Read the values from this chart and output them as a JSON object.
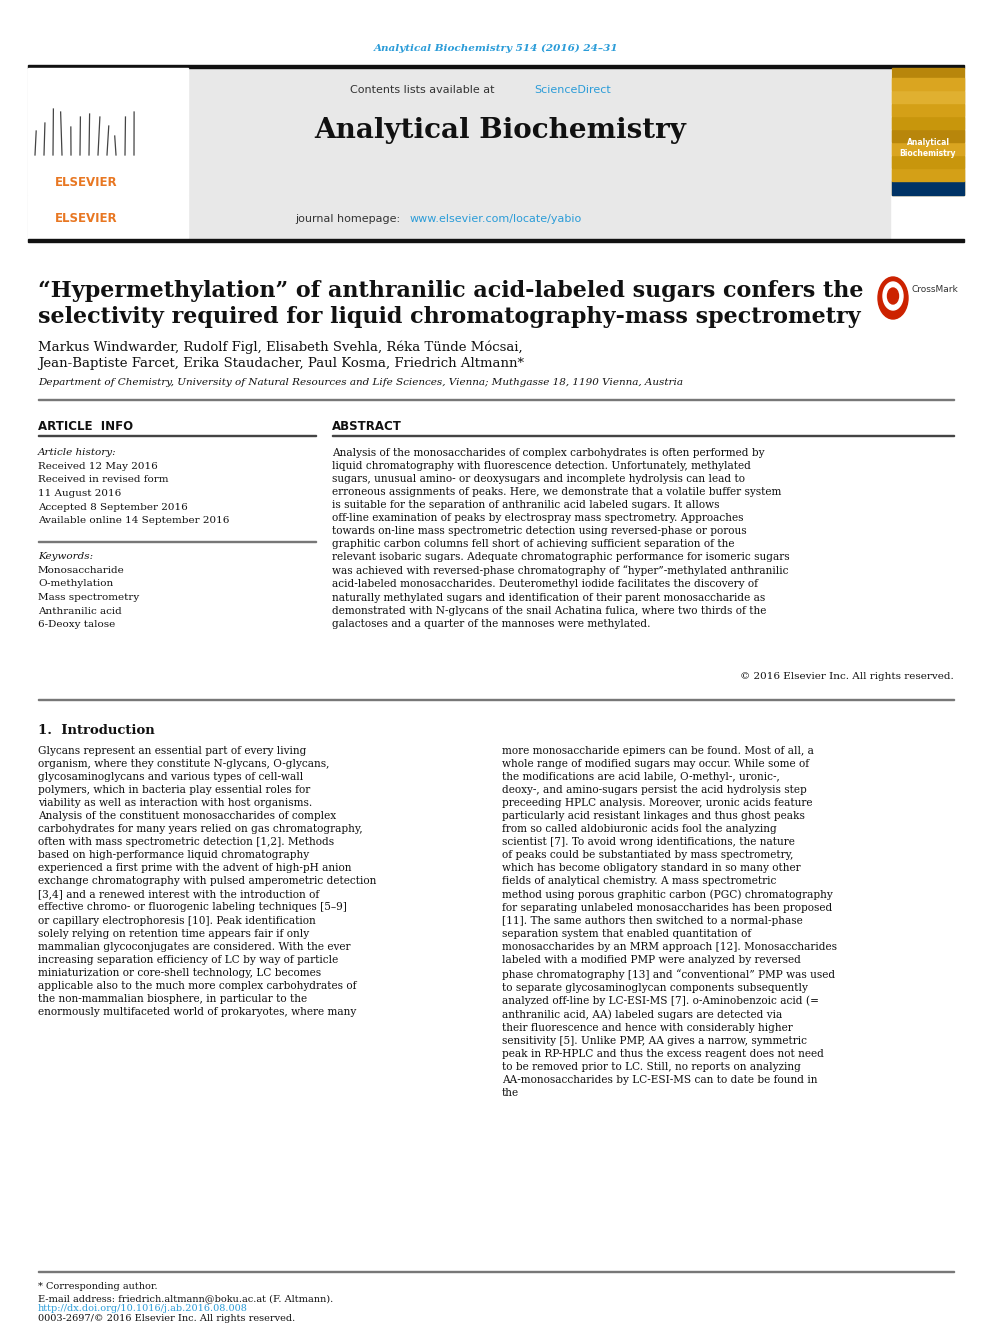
{
  "journal_ref": "Analytical Biochemistry 514 (2016) 24–31",
  "journal_name": "Analytical Biochemistry",
  "contents_text": "Contents lists available at",
  "science_direct": "ScienceDirect",
  "journal_homepage_text": "journal homepage:",
  "journal_url": "www.elsevier.com/locate/yabio",
  "title": "“Hypermethylation” of anthranilic acid-labeled sugars confers the\nselectivity required for liquid chromatography-mass spectrometry",
  "authors": "Markus Windwarder, Rudolf Figl, Elisabeth Svehla, Réka Tünde Mócsai,\nJean-Baptiste Farcet, Erika Staudacher, Paul Kosma, Friedrich Altmann*",
  "affiliation": "Department of Chemistry, University of Natural Resources and Life Sciences, Vienna; Muthgasse 18, 1190 Vienna, Austria",
  "article_info_title": "ARTICLE  INFO",
  "article_history_title": "Article history:",
  "received": "Received 12 May 2016",
  "revised": "Received in revised form",
  "revised2": "11 August 2016",
  "accepted": "Accepted 8 September 2016",
  "available": "Available online 14 September 2016",
  "keywords_title": "Keywords:",
  "keywords": [
    "Monosaccharide",
    "O-methylation",
    "Mass spectrometry",
    "Anthranilic acid",
    "6-Deoxy talose"
  ],
  "abstract_title": "ABSTRACT",
  "abstract_text": "Analysis of the monosaccharides of complex carbohydrates is often performed by liquid chromatography with fluorescence detection. Unfortunately, methylated sugars, unusual amino- or deoxysugars and incomplete hydrolysis can lead to erroneous assignments of peaks. Here, we demonstrate that a volatile buffer system is suitable for the separation of anthranilic acid labeled sugars. It allows off-line examination of peaks by electrospray mass spectrometry. Approaches towards on-line mass spectrometric detection using reversed-phase or porous graphitic carbon columns fell short of achieving sufficient separation of the relevant isobaric sugars. Adequate chromatographic performance for isomeric sugars was achieved with reversed-phase chromatography of “hyper”-methylated anthranilic acid-labeled monosaccharides. Deuteromethyl iodide facilitates the discovery of naturally methylated sugars and identification of their parent monosaccharide as demonstrated with N-glycans of the snail Achatina fulica, where two thirds of the galactoses and a quarter of the mannoses were methylated.",
  "copyright": "© 2016 Elsevier Inc. All rights reserved.",
  "section1_title": "1.  Introduction",
  "intro_col1": "Glycans represent an essential part of every living organism, where they constitute N-glycans, O-glycans, glycosaminoglycans and various types of cell-wall polymers, which in bacteria play essential roles for viability as well as interaction with host organisms. Analysis of the constituent monosaccharides of complex carbohydrates for many years relied on gas chromatography, often with mass spectrometric detection [1,2]. Methods based on high-performance liquid chromatography experienced a first prime with the advent of high-pH anion exchange chromatography with pulsed amperometric detection [3,4] and a renewed interest with the introduction of effective chromo- or fluorogenic labeling techniques [5–9] or capillary electrophoresis [10]. Peak identification solely relying on retention time appears fair if only mammalian glycoconjugates are considered. With the ever increasing separation efficiency of LC by way of particle miniaturization or core-shell technology, LC becomes applicable also to the much more complex carbohydrates of the non-mammalian biosphere, in particular to the enormously multifaceted world of prokaryotes, where many",
  "intro_col2": "more monosaccharide epimers can be found. Most of all, a whole range of modified sugars may occur. While some of the modifications are acid labile, O-methyl-, uronic-, deoxy-, and amino-sugars persist the acid hydrolysis step preceeding HPLC analysis. Moreover, uronic acids feature particularly acid resistant linkages and thus ghost peaks from so called aldobiuronic acids fool the analyzing scientist [7]. To avoid wrong identifications, the nature of peaks could be substantiated by mass spectrometry, which has become obligatory standard in so many other fields of analytical chemistry.\n    A mass spectrometric method using porous graphitic carbon (PGC) chromatography for separating unlabeled monosaccharides has been proposed [11]. The same authors then switched to a normal-phase separation system that enabled quantitation of monosaccharides by an MRM approach [12]. Monosaccharides labeled with a modified PMP were analyzed by reversed phase chromatography [13] and “conventional” PMP was used to separate glycosaminoglycan components subsequently analyzed off-line by LC-ESI-MS [7]. o-Aminobenzoic acid (= anthranilic acid, AA) labeled sugars are detected via their fluorescence and hence with considerably higher sensitivity [5]. Unlike PMP, AA gives a narrow, symmetric peak in RP-HPLC and thus the excess reagent does not need to be removed prior to LC. Still, no reports on analyzing AA-monosaccharides by LC-ESI-MS can to date be found in the",
  "footnote_corresponding": "* Corresponding author.",
  "footnote_email": "E-mail address: friedrich.altmann@boku.ac.at (F. Altmann).",
  "doi": "http://dx.doi.org/10.1016/j.ab.2016.08.008",
  "issn": "0003-2697/© 2016 Elsevier Inc. All rights reserved.",
  "bg_color": "#ffffff",
  "teal_color": "#2b9cd8",
  "elsevier_orange": "#e87722",
  "elsevier_blue": "#003366",
  "journal_cover_bg": "#c8960c"
}
